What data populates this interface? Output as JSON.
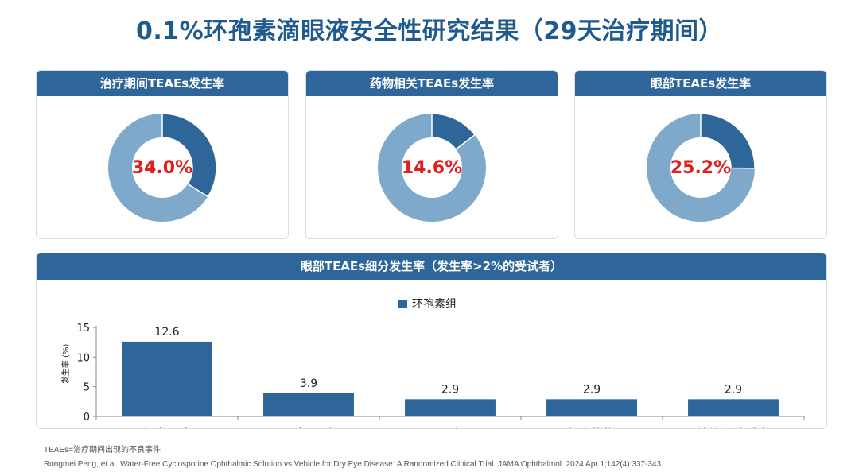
{
  "title": "0.1%环孢素滴眼液安全性研究结果（29天治疗期间）",
  "donuts": [
    {
      "header": "治疗期间TEAEs发生率",
      "value": 34.0,
      "label": "34.0%"
    },
    {
      "header": "药物相关TEAEs发生率",
      "value": 14.6,
      "label": "14.6%"
    },
    {
      "header": "眼部TEAEs发生率",
      "value": 25.2,
      "label": "25.2%"
    }
  ],
  "colors": {
    "dark": "#2e669a",
    "light": "#7fa9cb",
    "accent_text": "#e02020"
  },
  "bar_section": {
    "header": "眼部TEAEs细分发生率（发生率>2%的受试者）"
  },
  "chart_data": {
    "type": "bar",
    "categories": [
      "视力下降",
      "眼部不适",
      "眼痛",
      "视力模糊",
      "滴注部位反应"
    ],
    "series": [
      {
        "name": "环孢素组",
        "values": [
          12.6,
          3.9,
          2.9,
          2.9,
          2.9
        ]
      }
    ],
    "data_labels": [
      "12.6",
      "3.9",
      "2.9",
      "2.9",
      "2.9"
    ],
    "ylabel": "发生率 (%)",
    "ylim": [
      0,
      15
    ],
    "yticks": [
      0,
      5,
      10,
      15
    ],
    "legend_position": "top-center",
    "grid": false
  },
  "footnotes": {
    "abbr": "TEAEs=治疗期间出现的不良事件",
    "reference": "Rongmei Peng, et al. Water-Free Cyclosporine Ophthalmic Solution vs Vehicle for Dry Eye Disease: A Randomized Clinical Trial. JAMA Ophthalmol. 2024 Apr 1;142(4):337-343."
  }
}
